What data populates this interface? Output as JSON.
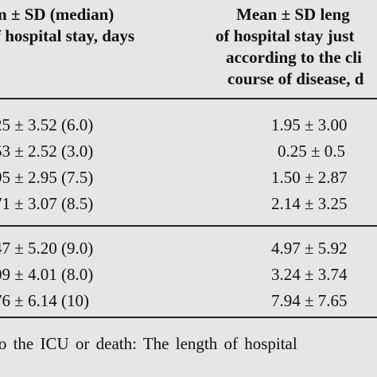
{
  "header": {
    "left_line1": "n ± SD (median)",
    "left_line2": "f hospital stay, days",
    "right_line1": "Mean ± SD leng",
    "right_line2": "of hospital stay just",
    "right_line3": "according to the cli",
    "right_line4": "course of disease, d"
  },
  "rows": [
    {
      "left": "25 ± 3.52 (6.0)",
      "right": "1.95 ± 3.00"
    },
    {
      "left": "53 ± 2.52 (3.0)",
      "right": "0.25 ± 0.5"
    },
    {
      "left": "95 ± 2.95 (7.5)",
      "right": "1.50 ± 2.87"
    },
    {
      "left": "71 ± 3.07 (8.5)",
      "right": "2.14 ± 3.25"
    },
    {
      "left": "47 ± 5.20 (9.0)",
      "right": "4.97 ± 5.92"
    },
    {
      "left": "09 ± 4.01 (8.0)",
      "right": "3.24 ± 3.74"
    },
    {
      "left": "76 ± 6.14 (10)",
      "right": "7.94 ± 7.65"
    }
  ],
  "footnote": "to the ICU or death: The length of hospital"
}
